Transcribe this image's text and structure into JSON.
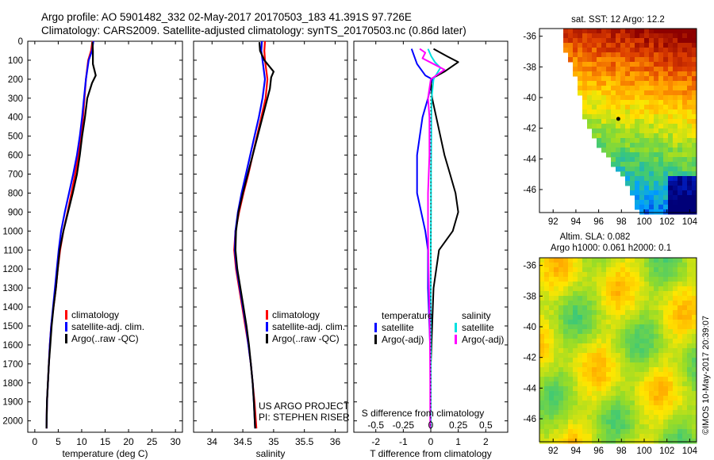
{
  "header": {
    "line1": "Argo profile: AO 5901482_332 02-May-2017 20170503_183 41.391S 97.726E",
    "line2": "Climatology: CARS2009. Satellite-adjusted climatology: synTS_20170503.nc (0.86d later)"
  },
  "depth_ticks": [
    0,
    100,
    200,
    300,
    400,
    500,
    600,
    700,
    800,
    900,
    1000,
    1100,
    1200,
    1300,
    1400,
    1500,
    1600,
    1700,
    1800,
    1900,
    2000
  ],
  "colors": {
    "climatology": "#ff0000",
    "satellite": "#0000ff",
    "argo": "#000000",
    "sat_salinity": "#00e0e0",
    "argo_salinity": "#ff00ff"
  },
  "chart_data": [
    {
      "id": "temperature",
      "type": "line",
      "xlabel": "temperature (deg C)",
      "xlim": [
        -1.5,
        31.5
      ],
      "ylim": [
        2060,
        0
      ],
      "xticks": [
        0,
        5,
        10,
        15,
        20,
        25,
        30
      ],
      "legend": [
        "climatology",
        "satellite-adj. clim.",
        "Argo(..raw -QC)"
      ],
      "legend_placement": "bottom-right",
      "series": [
        {
          "name": "climatology",
          "color": "#ff0000",
          "x": [
            12.3,
            12.0,
            11.4,
            10.9,
            10.6,
            10.3,
            9.9,
            9.3,
            8.6,
            7.8,
            7.0,
            6.1,
            5.4,
            4.9,
            4.5,
            4.0,
            3.5,
            3.2,
            3.0,
            2.8,
            2.6,
            2.5
          ],
          "y": [
            0,
            50,
            100,
            200,
            300,
            400,
            500,
            600,
            700,
            800,
            900,
            1000,
            1100,
            1200,
            1300,
            1400,
            1500,
            1600,
            1700,
            1800,
            1900,
            2040
          ]
        },
        {
          "name": "satellite-adj. clim.",
          "color": "#0000ff",
          "x": [
            12.5,
            12.2,
            11.5,
            10.9,
            10.5,
            10.1,
            9.6,
            9.0,
            8.2,
            7.3,
            6.4,
            5.6,
            5.1,
            4.7,
            4.3,
            3.9,
            3.5,
            3.2,
            3.0,
            2.8,
            2.6,
            2.5
          ],
          "y": [
            0,
            50,
            100,
            200,
            300,
            400,
            500,
            600,
            700,
            800,
            900,
            1000,
            1100,
            1200,
            1300,
            1400,
            1500,
            1600,
            1700,
            1800,
            1900,
            2040
          ]
        },
        {
          "name": "Argo(..raw -QC)",
          "color": "#000000",
          "x": [
            12.3,
            12.4,
            12.4,
            13.0,
            12.2,
            11.2,
            10.7,
            10.1,
            9.6,
            9.0,
            8.1,
            7.1,
            6.1,
            5.3,
            4.9,
            4.5,
            4.0,
            3.6,
            3.3,
            3.0,
            2.8,
            2.6,
            2.5
          ],
          "y": [
            5,
            50,
            120,
            180,
            220,
            300,
            400,
            500,
            600,
            700,
            800,
            900,
            1000,
            1100,
            1200,
            1300,
            1400,
            1500,
            1600,
            1700,
            1800,
            1900,
            2040
          ]
        }
      ]
    },
    {
      "id": "salinity",
      "type": "line",
      "xlabel": "salinity",
      "xlim": [
        33.7,
        36.2
      ],
      "ylim": [
        2060,
        0
      ],
      "xticks": [
        34,
        34.5,
        35,
        35.5,
        36
      ],
      "legend": [
        "climatology",
        "satellite-adj. clim.",
        "Argo(..raw -QC)"
      ],
      "legend_placement": "bottom-right",
      "series": [
        {
          "name": "climatology",
          "color": "#ff0000",
          "x": [
            34.86,
            34.85,
            34.86,
            34.9,
            34.87,
            34.8,
            34.73,
            34.66,
            34.59,
            34.51,
            34.44,
            34.38,
            34.36,
            34.39,
            34.44,
            34.49,
            34.54,
            34.59,
            34.63,
            34.66,
            34.69,
            34.72
          ],
          "y": [
            0,
            50,
            100,
            200,
            300,
            400,
            500,
            600,
            700,
            800,
            900,
            1000,
            1100,
            1200,
            1300,
            1400,
            1500,
            1600,
            1700,
            1800,
            1900,
            2040
          ]
        },
        {
          "name": "satellite-adj. clim.",
          "color": "#0000ff",
          "x": [
            34.81,
            34.8,
            34.82,
            34.86,
            34.82,
            34.76,
            34.69,
            34.62,
            34.55,
            34.48,
            34.42,
            34.38,
            34.37,
            34.4,
            34.45,
            34.5,
            34.55,
            34.59,
            34.63,
            34.66,
            34.68,
            34.7
          ],
          "y": [
            0,
            50,
            100,
            200,
            300,
            400,
            500,
            600,
            700,
            800,
            900,
            1000,
            1100,
            1200,
            1300,
            1400,
            1500,
            1600,
            1700,
            1800,
            1900,
            2040
          ]
        },
        {
          "name": "Argo(..raw -QC)",
          "color": "#000000",
          "x": [
            34.77,
            34.78,
            34.85,
            35.0,
            34.96,
            34.94,
            34.9,
            34.82,
            34.74,
            34.66,
            34.58,
            34.5,
            34.43,
            34.39,
            34.38,
            34.41,
            34.46,
            34.51,
            34.56,
            34.6,
            34.63,
            34.66,
            34.68,
            34.7
          ],
          "y": [
            5,
            50,
            100,
            160,
            190,
            250,
            300,
            400,
            500,
            600,
            700,
            800,
            900,
            1000,
            1100,
            1200,
            1300,
            1400,
            1500,
            1600,
            1700,
            1800,
            1900,
            2040
          ]
        }
      ]
    },
    {
      "id": "difference",
      "type": "line",
      "xlabel": "T difference from climatology",
      "xlabel_top": "S difference from climatology",
      "xlim": [
        -2.8,
        2.8
      ],
      "ylim": [
        2060,
        0
      ],
      "xticks_T": [
        -2,
        -1,
        0,
        1,
        2
      ],
      "xticks_S": [
        "-0.5",
        "-0.25",
        "0",
        "0.25",
        "0.5"
      ],
      "xticks_S_values": [
        -0.5,
        -0.25,
        0,
        0.25,
        0.5
      ],
      "legend_headers": [
        "temperature",
        "salinity"
      ],
      "legend": [
        "satellite",
        "Argo(-adj)",
        "satellite",
        "Argo(-adj)"
      ],
      "legend_placement": "bottom-center",
      "series": [
        {
          "name": "satellite",
          "group": "temperature",
          "color": "#0000ff",
          "x": [
            -0.7,
            -0.6,
            -0.5,
            -0.2,
            0.05,
            -0.1,
            -0.3,
            -0.4,
            -0.5,
            -0.5,
            -0.5,
            -0.35,
            -0.2,
            -0.1,
            -0.1,
            -0.05,
            0.0,
            0.0,
            0.0
          ],
          "y": [
            40,
            80,
            120,
            180,
            200,
            300,
            400,
            500,
            600,
            700,
            800,
            900,
            1000,
            1100,
            1300,
            1500,
            1700,
            1900,
            2040
          ]
        },
        {
          "name": "Argo(-adj)",
          "group": "temperature",
          "color": "#000000",
          "x": [
            0.1,
            0.6,
            1.0,
            0.5,
            0.0,
            0.05,
            0.2,
            0.35,
            0.5,
            0.7,
            0.9,
            1.0,
            0.8,
            0.3,
            0.1,
            0.05,
            0.0,
            0.0,
            0.0
          ],
          "y": [
            40,
            80,
            110,
            160,
            200,
            300,
            400,
            500,
            600,
            700,
            800,
            900,
            1000,
            1100,
            1300,
            1500,
            1700,
            1900,
            2040
          ]
        },
        {
          "name": "satellite",
          "group": "salinity",
          "color": "#00e0e0",
          "x": [
            -0.1,
            0.02,
            0.15,
            0.35,
            0.1,
            0.03,
            0.02,
            0.02,
            0.01,
            0.01,
            0.0,
            0.0,
            0.0,
            0.0,
            0.0,
            0.0
          ],
          "y": [
            40,
            80,
            110,
            140,
            200,
            300,
            400,
            500,
            700,
            900,
            1100,
            1300,
            1500,
            1700,
            1900,
            2040
          ]
        },
        {
          "name": "Argo(-adj)",
          "group": "salinity",
          "color": "#ff00ff",
          "x": [
            -0.4,
            -0.2,
            -0.3,
            0.1,
            0.5,
            0.0,
            -0.1,
            -0.05,
            -0.05,
            -0.1,
            -0.1,
            -0.08,
            -0.05,
            -0.03,
            -0.02,
            -0.02,
            -0.02
          ],
          "y": [
            40,
            60,
            90,
            120,
            150,
            200,
            300,
            400,
            600,
            800,
            1000,
            1200,
            1400,
            1600,
            1800,
            1900,
            2040
          ]
        }
      ]
    },
    {
      "id": "sst_map",
      "type": "heatmap",
      "title": "sat. SST: 12  Argo: 12.2",
      "xlim": [
        90.8,
        104.6
      ],
      "ylim": [
        -47.5,
        -35.5
      ],
      "xticks": [
        92,
        94,
        96,
        98,
        100,
        102,
        104
      ],
      "yticks": [
        -36,
        -38,
        -40,
        -42,
        -44,
        -46
      ]
    },
    {
      "id": "sla_map",
      "type": "heatmap",
      "title": "Altim. SLA: 0.082",
      "subtitle": "Argo h1000: 0.061 h2000: 0.1",
      "xlim": [
        90.8,
        104.6
      ],
      "ylim": [
        -47.5,
        -35.5
      ],
      "xticks": [
        92,
        94,
        96,
        98,
        100,
        102,
        104
      ],
      "yticks": [
        -36,
        -38,
        -40,
        -42,
        -44,
        -46
      ]
    }
  ],
  "project": {
    "line1": "US ARGO PROJECT",
    "line2": "PI: STEPHEN RISER"
  },
  "credit": "©IMOS 10-May-2017 20:39:07"
}
